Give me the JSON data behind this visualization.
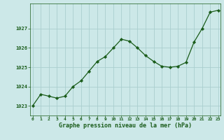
{
  "x": [
    0,
    1,
    2,
    3,
    4,
    5,
    6,
    7,
    8,
    9,
    10,
    11,
    12,
    13,
    14,
    15,
    16,
    17,
    18,
    19,
    20,
    21,
    22,
    23
  ],
  "y": [
    1023.0,
    1023.6,
    1023.5,
    1023.4,
    1023.5,
    1024.0,
    1024.3,
    1024.8,
    1025.3,
    1025.55,
    1026.0,
    1026.45,
    1026.35,
    1026.0,
    1025.6,
    1025.3,
    1025.05,
    1025.0,
    1025.05,
    1025.25,
    1026.3,
    1027.0,
    1027.85,
    1027.95
  ],
  "line_color": "#1a5c1a",
  "marker": "D",
  "marker_size": 2.2,
  "bg_color": "#cce8e8",
  "grid_color": "#aacece",
  "xlabel": "Graphe pression niveau de la mer (hPa)",
  "xlabel_color": "#1a5c1a",
  "tick_color": "#1a5c1a",
  "ylim": [
    1022.5,
    1028.3
  ],
  "yticks": [
    1023,
    1024,
    1025,
    1026,
    1027
  ],
  "xticks": [
    0,
    1,
    2,
    3,
    4,
    5,
    6,
    7,
    8,
    9,
    10,
    11,
    12,
    13,
    14,
    15,
    16,
    17,
    18,
    19,
    20,
    21,
    22,
    23
  ],
  "xlim": [
    -0.3,
    23.3
  ]
}
